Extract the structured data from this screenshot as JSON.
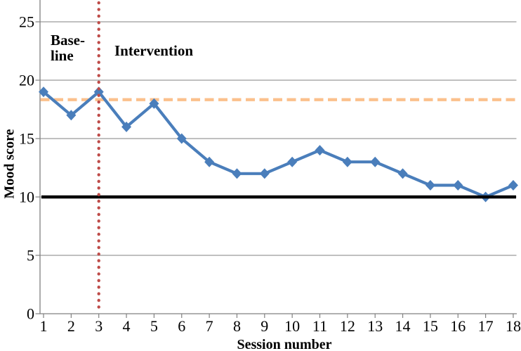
{
  "chart_data": {
    "type": "line",
    "title": "",
    "xlabel": "Session number",
    "ylabel": "Mood score",
    "x": [
      1,
      2,
      3,
      4,
      5,
      6,
      7,
      8,
      9,
      10,
      11,
      12,
      13,
      14,
      15,
      16,
      17,
      18
    ],
    "series": [
      {
        "name": "Mood score",
        "marker": "diamond",
        "color": "#4A7EBB",
        "values": [
          19,
          17,
          19,
          16,
          18,
          15,
          13,
          12,
          12,
          13,
          14,
          13,
          13,
          12,
          11,
          11,
          10,
          11
        ]
      }
    ],
    "ylim": [
      0,
      26.9
    ],
    "yticks": [
      0,
      5,
      10,
      15,
      20,
      25
    ],
    "xticks": [
      1,
      2,
      3,
      4,
      5,
      6,
      7,
      8,
      9,
      10,
      11,
      12,
      13,
      14,
      15,
      16,
      17,
      18
    ],
    "grid": "horizontal",
    "legend_position": "none",
    "colors": {
      "gridline": "#9A9A9A",
      "axis": "#808080",
      "text": "#000000"
    },
    "reference_lines": [
      {
        "id": "baseline-mean-line",
        "axis": "y",
        "value": 18.33,
        "style": "dashed",
        "color": "#FBC08C"
      },
      {
        "id": "criterion-line",
        "axis": "y",
        "value": 10,
        "style": "solid",
        "color": "#000000"
      },
      {
        "id": "phase-change-line",
        "axis": "x",
        "value": 3,
        "style": "dotted",
        "color": "#BE4B48"
      }
    ],
    "annotations": [
      {
        "id": "baseline-phase",
        "line1": "Base-",
        "line2": "line"
      },
      {
        "id": "intervention-phase",
        "line1": "Intervention"
      }
    ]
  }
}
